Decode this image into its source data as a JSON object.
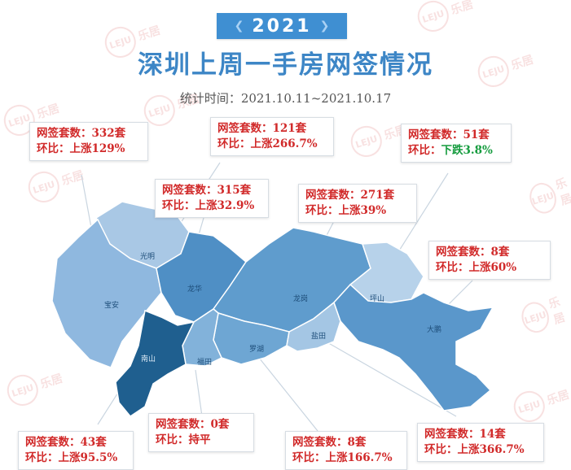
{
  "header": {
    "year": "2021",
    "title": "深圳上周一手房网签情况",
    "period": "统计时间：2021.10.11~2021.10.17"
  },
  "watermark": {
    "logo": "LEJU",
    "text": "乐居"
  },
  "colors": {
    "header_blue": "#3f8fd2",
    "title_blue": "#3d86c6",
    "rise_red": "#d12a2a",
    "fall_green": "#169c3f",
    "nanshan_dark": "#1f5f8f"
  },
  "districts": [
    {
      "key": "guangming",
      "label": "光明"
    },
    {
      "key": "baoan",
      "label": "宝安"
    },
    {
      "key": "longhua",
      "label": "龙华"
    },
    {
      "key": "nanshan",
      "label": "南山"
    },
    {
      "key": "futian",
      "label": "福田"
    },
    {
      "key": "luohu",
      "label": "罗湖"
    },
    {
      "key": "longgang",
      "label": "龙岗"
    },
    {
      "key": "yantian",
      "label": "盐田"
    },
    {
      "key": "pingshan",
      "label": "坪山"
    },
    {
      "key": "dapeng",
      "label": "大鹏"
    }
  ],
  "cards": [
    {
      "key": "baoan",
      "sales": "网签套数：332套",
      "ratio_label": "环比：",
      "ratio": "上涨129%",
      "trend": "up"
    },
    {
      "key": "longgang",
      "sales": "网签套数：121套",
      "ratio_label": "环比：",
      "ratio": "上涨266.7%",
      "trend": "up"
    },
    {
      "key": "pingshan",
      "sales": "网签套数：51套",
      "ratio_label": "环比：",
      "ratio": "下跌3.8%",
      "trend": "down"
    },
    {
      "key": "longhua",
      "sales": "网签套数：315套",
      "ratio_label": "环比：",
      "ratio": "上涨32.9%",
      "trend": "up"
    },
    {
      "key": "guangming",
      "sales": "网签套数：271套",
      "ratio_label": "环比：",
      "ratio": "上涨39%",
      "trend": "up"
    },
    {
      "key": "dapeng",
      "sales": "网签套数：8套",
      "ratio_label": "环比：",
      "ratio": "上涨60%",
      "trend": "up"
    },
    {
      "key": "nanshan",
      "sales": "网签套数：43套",
      "ratio_label": "环比：",
      "ratio": "上涨95.5%",
      "trend": "up"
    },
    {
      "key": "futian",
      "sales": "网签套数：0套",
      "ratio_label": "环比：",
      "ratio": "持平",
      "trend": "flat"
    },
    {
      "key": "luohu",
      "sales": "网签套数：8套",
      "ratio_label": "环比：",
      "ratio": "上涨166.7%",
      "trend": "up"
    },
    {
      "key": "yantian",
      "sales": "网签套数：14套",
      "ratio_label": "环比：",
      "ratio": "上涨366.7%",
      "trend": "up"
    }
  ]
}
